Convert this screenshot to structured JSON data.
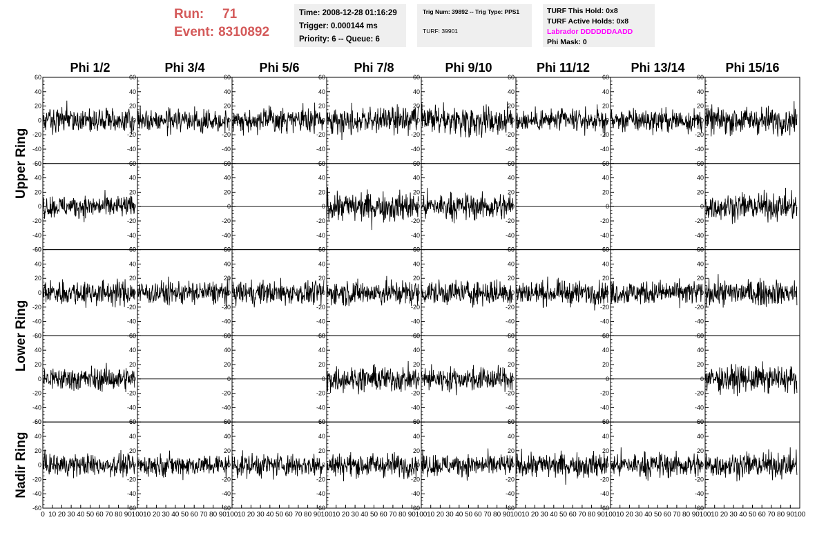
{
  "header": {
    "run_label": "Run:",
    "run_value": "71",
    "event_label": "Event:",
    "event_value": "8310892",
    "time": "Time: 2008-12-28 01:16:29",
    "trigger": "Trigger: 0.000144 ms",
    "priority": "Priority: 6 -- Queue: 6",
    "trig_num": "Trig Num: 39892 -- Trig Type: PPS1",
    "turf": "TURF: 39901",
    "turf_this_hold": "TURF This Hold: 0x8",
    "turf_active_holds": "TURF Active Holds: 0x8",
    "labrador": "Labrador DDDDDDAADD",
    "phi_mask": "Phi Mask: 0"
  },
  "colors": {
    "run_text": "#d45a5a",
    "labrador": "#ff00ff",
    "info_box": "#efefef"
  },
  "chart_data": {
    "type": "line",
    "columns": [
      "Phi 1/2",
      "Phi 3/4",
      "Phi 5/6",
      "Phi 7/8",
      "Phi 9/10",
      "Phi 11/12",
      "Phi 13/14",
      "Phi 15/16"
    ],
    "ring_labels": [
      "Upper Ring",
      "Lower Ring",
      "Nadir Ring"
    ],
    "ylim": [
      -60,
      60
    ],
    "xlim": [
      0,
      100
    ],
    "yticks": [
      "60",
      "40",
      "20",
      "0",
      "-20",
      "-40",
      "-60"
    ],
    "xticks": [
      "0",
      "10",
      "20",
      "30",
      "40",
      "50",
      "60",
      "70",
      "80",
      "90",
      "100"
    ],
    "panels": [
      {
        "row": 0,
        "col": 0,
        "amp": 16,
        "mode": "noise"
      },
      {
        "row": 0,
        "col": 1,
        "amp": 14,
        "mode": "noise"
      },
      {
        "row": 0,
        "col": 2,
        "amp": 15,
        "mode": "noise"
      },
      {
        "row": 0,
        "col": 3,
        "amp": 17,
        "mode": "noise"
      },
      {
        "row": 0,
        "col": 4,
        "amp": 19,
        "mode": "noise"
      },
      {
        "row": 0,
        "col": 5,
        "amp": 14,
        "mode": "noise"
      },
      {
        "row": 0,
        "col": 6,
        "amp": 15,
        "mode": "noise"
      },
      {
        "row": 0,
        "col": 7,
        "amp": 17,
        "mode": "noise"
      },
      {
        "row": 1,
        "col": 0,
        "amp": 14,
        "mode": "noise"
      },
      {
        "row": 1,
        "col": 1,
        "amp": 0,
        "mode": "flat"
      },
      {
        "row": 1,
        "col": 2,
        "amp": 0,
        "mode": "flat"
      },
      {
        "row": 1,
        "col": 3,
        "amp": 19,
        "mode": "noise"
      },
      {
        "row": 1,
        "col": 4,
        "amp": 17,
        "mode": "noise"
      },
      {
        "row": 1,
        "col": 5,
        "amp": 0,
        "mode": "flat"
      },
      {
        "row": 1,
        "col": 6,
        "amp": 0,
        "mode": "flat"
      },
      {
        "row": 1,
        "col": 7,
        "amp": 17,
        "mode": "noise"
      },
      {
        "row": 2,
        "col": 0,
        "amp": 16,
        "mode": "noise"
      },
      {
        "row": 2,
        "col": 1,
        "amp": 15,
        "mode": "noise"
      },
      {
        "row": 2,
        "col": 2,
        "amp": 15,
        "mode": "noise"
      },
      {
        "row": 2,
        "col": 3,
        "amp": 16,
        "mode": "noise"
      },
      {
        "row": 2,
        "col": 4,
        "amp": 16,
        "mode": "noise"
      },
      {
        "row": 2,
        "col": 5,
        "amp": 15,
        "mode": "noise"
      },
      {
        "row": 2,
        "col": 6,
        "amp": 15,
        "mode": "noise"
      },
      {
        "row": 2,
        "col": 7,
        "amp": 16,
        "mode": "noise"
      },
      {
        "row": 3,
        "col": 0,
        "amp": 15,
        "mode": "noise"
      },
      {
        "row": 3,
        "col": 1,
        "amp": 0,
        "mode": "flat"
      },
      {
        "row": 3,
        "col": 2,
        "amp": 0,
        "mode": "flat"
      },
      {
        "row": 3,
        "col": 3,
        "amp": 16,
        "mode": "noise"
      },
      {
        "row": 3,
        "col": 4,
        "amp": 15,
        "mode": "noise"
      },
      {
        "row": 3,
        "col": 5,
        "amp": 0,
        "mode": "flat"
      },
      {
        "row": 3,
        "col": 6,
        "amp": 0,
        "mode": "flat"
      },
      {
        "row": 3,
        "col": 7,
        "amp": 17,
        "mode": "noise"
      },
      {
        "row": 4,
        "col": 0,
        "amp": 14,
        "mode": "noise"
      },
      {
        "row": 4,
        "col": 1,
        "amp": 14,
        "mode": "noise"
      },
      {
        "row": 4,
        "col": 2,
        "amp": 15,
        "mode": "noise"
      },
      {
        "row": 4,
        "col": 3,
        "amp": 15,
        "mode": "noise"
      },
      {
        "row": 4,
        "col": 4,
        "amp": 14,
        "mode": "noise"
      },
      {
        "row": 4,
        "col": 5,
        "amp": 16,
        "mode": "noise"
      },
      {
        "row": 4,
        "col": 6,
        "amp": 16,
        "mode": "noise"
      },
      {
        "row": 4,
        "col": 7,
        "amp": 16,
        "mode": "noise"
      }
    ]
  }
}
